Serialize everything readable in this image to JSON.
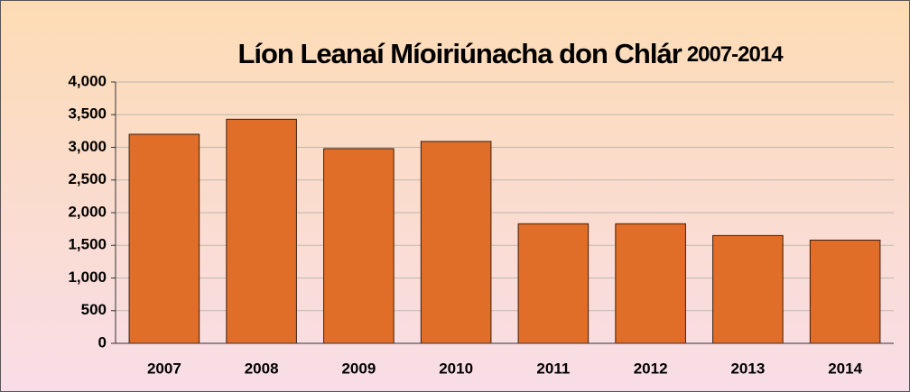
{
  "chart_data": {
    "type": "bar",
    "title": "Líon Leanaí Míoiriúnacha don Chlár",
    "subtitle": "2007-2014",
    "categories": [
      "2007",
      "2008",
      "2009",
      "2010",
      "2011",
      "2012",
      "2013",
      "2014"
    ],
    "values": [
      3200,
      3430,
      2980,
      3090,
      1830,
      1830,
      1650,
      1580
    ],
    "color": "#e06d28",
    "ylim": [
      0,
      4000
    ],
    "yticks": [
      0,
      500,
      {
        "value": 1000,
        "label": "1,000"
      },
      {
        "value": 1500,
        "label": "1,500"
      },
      {
        "value": 2000,
        "label": "2,000"
      },
      {
        "value": 2500,
        "label": "2,500"
      },
      {
        "value": 3000,
        "label": "3,000"
      },
      {
        "value": 3500,
        "label": "3,500"
      },
      {
        "value": 4000,
        "label": "4,000"
      }
    ],
    "grid": true
  }
}
